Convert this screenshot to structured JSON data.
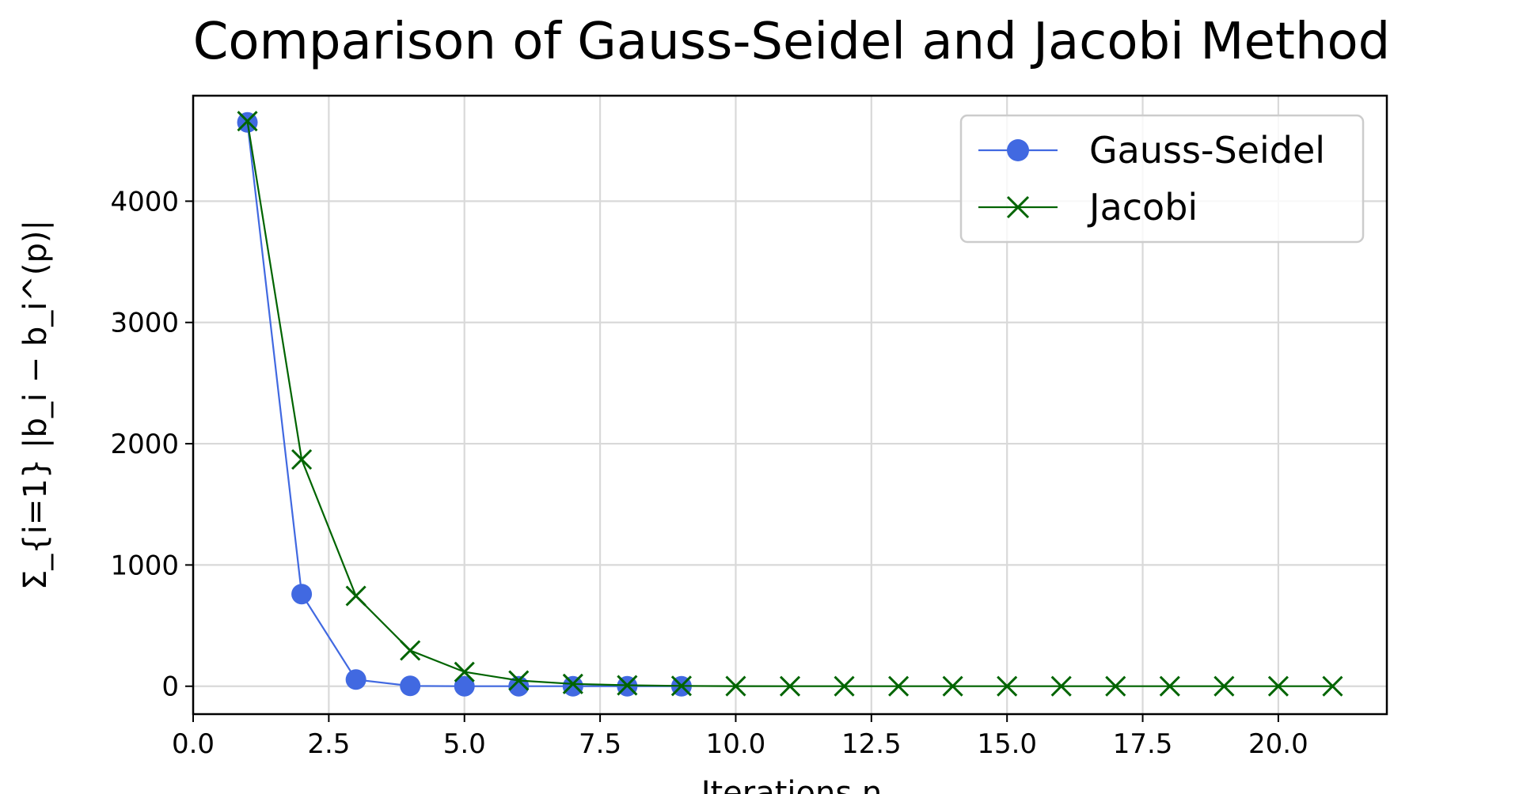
{
  "chart_data": {
    "type": "line",
    "title": "Comparison of Gauss-Seidel and Jacobi Method",
    "xlabel": "Iterations n",
    "ylabel": "Σ_{i=1} |b_i − b_i^(p)|",
    "xlim": [
      0,
      22
    ],
    "ylim": [
      -230,
      4870
    ],
    "xticks": [
      0,
      2.5,
      5,
      7.5,
      10,
      12.5,
      15,
      17.5,
      20
    ],
    "xtick_labels": [
      "0.0",
      "2.5",
      "5.0",
      "7.5",
      "10.0",
      "12.5",
      "15.0",
      "17.5",
      "20.0"
    ],
    "yticks": [
      0,
      1000,
      2000,
      3000,
      4000
    ],
    "ytick_labels": [
      "0",
      "1000",
      "2000",
      "3000",
      "4000"
    ],
    "grid": true,
    "legend_position": "top-right",
    "series": [
      {
        "name": "Gauss-Seidel",
        "color": "#4169e1",
        "marker": "circle",
        "x": [
          1,
          2,
          3,
          4,
          5,
          6,
          7,
          8,
          9
        ],
        "y": [
          4650,
          760,
          55,
          3,
          0,
          0,
          0,
          0,
          0
        ]
      },
      {
        "name": "Jacobi",
        "color": "#006400",
        "marker": "x",
        "x": [
          1,
          2,
          3,
          4,
          5,
          6,
          7,
          8,
          9,
          10,
          11,
          12,
          13,
          14,
          15,
          16,
          17,
          18,
          19,
          20,
          21
        ],
        "y": [
          4660,
          1870,
          745,
          295,
          118,
          47,
          19,
          8,
          3,
          1,
          0,
          0,
          0,
          0,
          0,
          0,
          0,
          0,
          0,
          0,
          0
        ]
      }
    ]
  }
}
